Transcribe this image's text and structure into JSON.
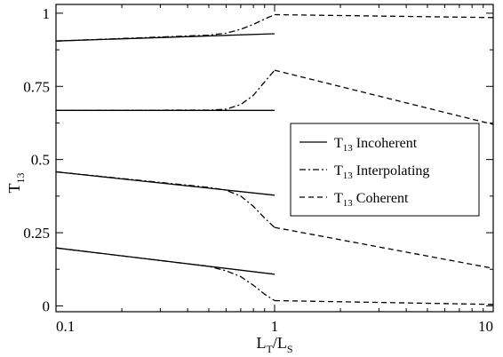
{
  "chart_data": {
    "type": "line",
    "xscale": "log",
    "xlim": [
      0.1,
      10
    ],
    "ylim": [
      -0.02,
      1.03
    ],
    "xticks": [
      0.1,
      1,
      10
    ],
    "xtick_labels": [
      "0.1",
      "1",
      "10"
    ],
    "yticks": [
      0,
      0.25,
      0.5,
      0.75,
      1
    ],
    "ytick_labels": [
      "0",
      "0.25",
      "0.5",
      "0.75",
      "1"
    ],
    "xlabel": {
      "main": "L",
      "sub1": "T",
      "sep": "/L",
      "sub2": "S"
    },
    "ylabel": {
      "main": "T",
      "sub": "13"
    },
    "grid": false,
    "legend": {
      "placement": "center-right",
      "entries": [
        {
          "main": "T",
          "sub": "13",
          "text": " Incoherent",
          "style": "solid"
        },
        {
          "main": "T",
          "sub": "13",
          "text": " Interpolating",
          "style": "dashdot"
        },
        {
          "main": "T",
          "sub": "13",
          "text": " Coherent",
          "style": "dashed"
        }
      ]
    },
    "series": [
      {
        "style": "solid",
        "points": [
          [
            0.1,
            0.905
          ],
          [
            1,
            0.93
          ]
        ]
      },
      {
        "style": "solid",
        "points": [
          [
            0.1,
            0.668
          ],
          [
            1,
            0.668
          ]
        ]
      },
      {
        "style": "solid",
        "points": [
          [
            0.1,
            0.458
          ],
          [
            1,
            0.378
          ]
        ]
      },
      {
        "style": "solid",
        "points": [
          [
            0.1,
            0.198
          ],
          [
            1,
            0.108
          ]
        ]
      },
      {
        "style": "dashdot",
        "points": [
          [
            0.1,
            0.905
          ],
          [
            0.5,
            0.925
          ],
          [
            0.6,
            0.932
          ],
          [
            0.7,
            0.945
          ],
          [
            0.8,
            0.962
          ],
          [
            0.9,
            0.98
          ],
          [
            1,
            0.995
          ]
        ]
      },
      {
        "style": "dashdot",
        "points": [
          [
            0.1,
            0.668
          ],
          [
            0.5,
            0.669
          ],
          [
            0.6,
            0.672
          ],
          [
            0.7,
            0.688
          ],
          [
            0.8,
            0.72
          ],
          [
            0.9,
            0.765
          ],
          [
            1,
            0.805
          ]
        ]
      },
      {
        "style": "dashdot",
        "points": [
          [
            0.1,
            0.458
          ],
          [
            0.5,
            0.405
          ],
          [
            0.6,
            0.395
          ],
          [
            0.7,
            0.375
          ],
          [
            0.8,
            0.34
          ],
          [
            0.9,
            0.3
          ],
          [
            1,
            0.268
          ]
        ]
      },
      {
        "style": "dashdot",
        "points": [
          [
            0.1,
            0.198
          ],
          [
            0.5,
            0.135
          ],
          [
            0.6,
            0.12
          ],
          [
            0.7,
            0.1
          ],
          [
            0.8,
            0.07
          ],
          [
            0.9,
            0.04
          ],
          [
            1,
            0.018
          ]
        ]
      },
      {
        "style": "dashed",
        "points": [
          [
            1,
            0.995
          ],
          [
            10,
            0.985
          ]
        ]
      },
      {
        "style": "dashed",
        "points": [
          [
            1,
            0.805
          ],
          [
            10,
            0.62
          ]
        ]
      },
      {
        "style": "dashed",
        "points": [
          [
            1,
            0.268
          ],
          [
            10,
            0.128
          ]
        ]
      },
      {
        "style": "dashed",
        "points": [
          [
            1,
            0.018
          ],
          [
            10,
            0.005
          ]
        ]
      }
    ]
  }
}
